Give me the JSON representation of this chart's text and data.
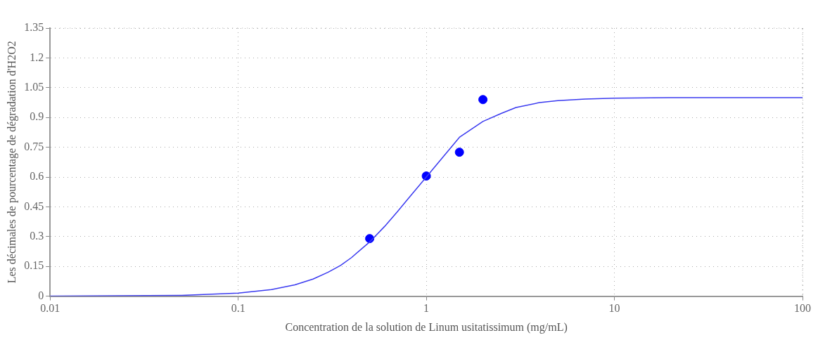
{
  "chart_data": {
    "type": "line",
    "xlabel": "Concentration de la solution de Linum usitatissimum (mg/mL)",
    "ylabel": "Les décimales de pourcentage de dégradation d'H2O2",
    "log": "x",
    "grid": true,
    "marker": "none",
    "line_style": "solid",
    "xlim": [
      0.01,
      100
    ],
    "xticks": [
      0.01,
      0.1,
      1,
      10,
      100
    ],
    "ylim": [
      0,
      1.35
    ],
    "yticks": [
      0,
      0.15,
      0.3,
      0.45,
      0.6,
      0.75,
      0.9,
      1.05,
      1.2,
      1.35
    ],
    "series": [
      {
        "color": "#3a3af0",
        "x": [
          0.01,
          0.05,
          0.1,
          0.15,
          0.2,
          0.25,
          0.3,
          0.35,
          0.4,
          0.5,
          0.6,
          0.7,
          0.8,
          1,
          1.5,
          2,
          2.5,
          3,
          4,
          5,
          7,
          10,
          20,
          100
        ],
        "values": [
          0,
          0.004,
          0.015,
          0.033,
          0.057,
          0.086,
          0.12,
          0.155,
          0.194,
          0.273,
          0.351,
          0.424,
          0.49,
          0.6,
          0.8,
          0.88,
          0.92,
          0.95,
          0.975,
          0.985,
          0.993,
          0.997,
          1,
          1
        ]
      },
      {
        "type": "scatter",
        "color": "#0000ff",
        "marker": "circle",
        "x": [
          0.5,
          1,
          1.5,
          2
        ],
        "values": [
          0.29,
          0.605,
          0.725,
          0.99
        ]
      }
    ]
  }
}
